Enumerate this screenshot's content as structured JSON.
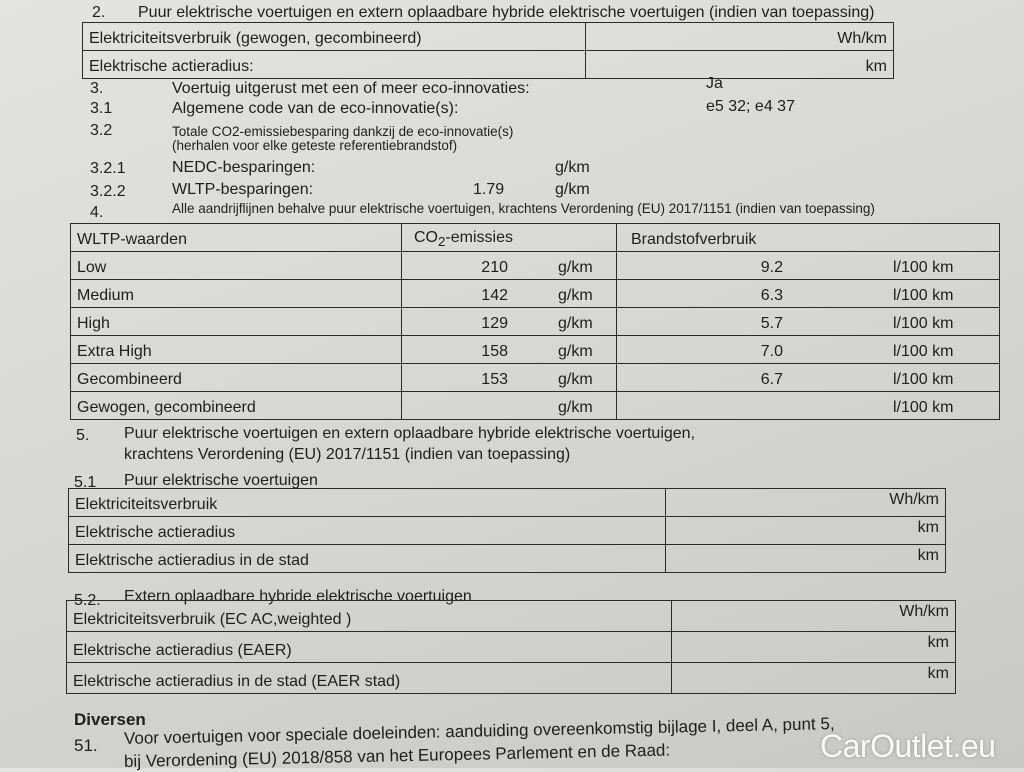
{
  "section2": {
    "num": "2.",
    "title": "Puur elektrische voertuigen en extern oplaadbare hybride elektrische voertuigen (indien van toepassing)",
    "rows": [
      {
        "label": "Elektriciteitsverbruik (gewogen, gecombineerd)",
        "unit": "Wh/km"
      },
      {
        "label": "Elektrische actieradius:",
        "unit": "km"
      }
    ]
  },
  "section3": {
    "items": [
      {
        "num": "3.",
        "label": "Voertuig uitgerust met een of meer eco-innovaties:",
        "value": "Ja"
      },
      {
        "num": "3.1",
        "label": "Algemene code van de eco-innovatie(s):",
        "value": "e5 32; e4 37"
      },
      {
        "num": "3.2",
        "label": "Totale CO2-emissiebesparing dankzij de eco-innovatie(s)",
        "label2": "(herhalen voor elke geteste referentiebrandstof)"
      },
      {
        "num": "3.2.1",
        "label": "NEDC-besparingen:",
        "value": "",
        "unit": "g/km"
      },
      {
        "num": "3.2.2",
        "label": "WLTP-besparingen:",
        "value": "1.79",
        "unit": "g/km"
      }
    ]
  },
  "section4": {
    "num": "4.",
    "title": "Alle aandrijflijnen behalve puur elektrische voertuigen, krachtens Verordening (EU) 2017/1151 (indien van toepassing)",
    "headers": [
      "WLTP-waarden",
      "CO",
      "2",
      "-emissies",
      "Brandstofverbruik"
    ],
    "rows": [
      {
        "label": "Low",
        "co2": "210",
        "co2_unit": "g/km",
        "fuel": "9.2",
        "fuel_unit": "l/100 km"
      },
      {
        "label": "Medium",
        "co2": "142",
        "co2_unit": "g/km",
        "fuel": "6.3",
        "fuel_unit": "l/100 km"
      },
      {
        "label": "High",
        "co2": "129",
        "co2_unit": "g/km",
        "fuel": "5.7",
        "fuel_unit": "l/100 km"
      },
      {
        "label": "Extra High",
        "co2": "158",
        "co2_unit": "g/km",
        "fuel": "7.0",
        "fuel_unit": "l/100 km"
      },
      {
        "label": "Gecombineerd",
        "co2": "153",
        "co2_unit": "g/km",
        "fuel": "6.7",
        "fuel_unit": "l/100 km"
      },
      {
        "label": "Gewogen, gecombineerd",
        "co2": "",
        "co2_unit": "g/km",
        "fuel": "",
        "fuel_unit": "l/100 km"
      }
    ]
  },
  "section5": {
    "num": "5.",
    "line1": "Puur elektrische voertuigen en extern oplaadbare hybride elektrische voertuigen,",
    "line2": "krachtens Verordening (EU) 2017/1151 (indien van toepassing)",
    "sub1": {
      "num": "5.1",
      "title": "Puur elektrische voertuigen",
      "rows": [
        {
          "label": "Elektriciteitsverbruik",
          "unit": "Wh/km"
        },
        {
          "label": "Elektrische actieradius",
          "unit": "km"
        },
        {
          "label": "Elektrische actieradius in de stad",
          "unit": "km"
        }
      ]
    },
    "sub2": {
      "num": "5.2.",
      "title": "Extern oplaadbare hybride elektrische voertuigen",
      "rows": [
        {
          "label": "Elektriciteitsverbruik (EC AC,weighted )",
          "unit": "Wh/km"
        },
        {
          "label": "Elektrische actieradius (EAER)",
          "unit": "km"
        },
        {
          "label": "Elektrische actieradius in de stad (EAER stad)",
          "unit": "km"
        }
      ]
    }
  },
  "diversen": {
    "title": "Diversen",
    "num": "51.",
    "line1": "Voor voertuigen voor speciale doeleinden: aanduiding overeenkomstig bijlage I, deel A, punt 5,",
    "line2": "bij Verordening (EU) 2018/858 van het Europees Parlement en de Raad:"
  },
  "watermark": "CarOutlet.eu"
}
